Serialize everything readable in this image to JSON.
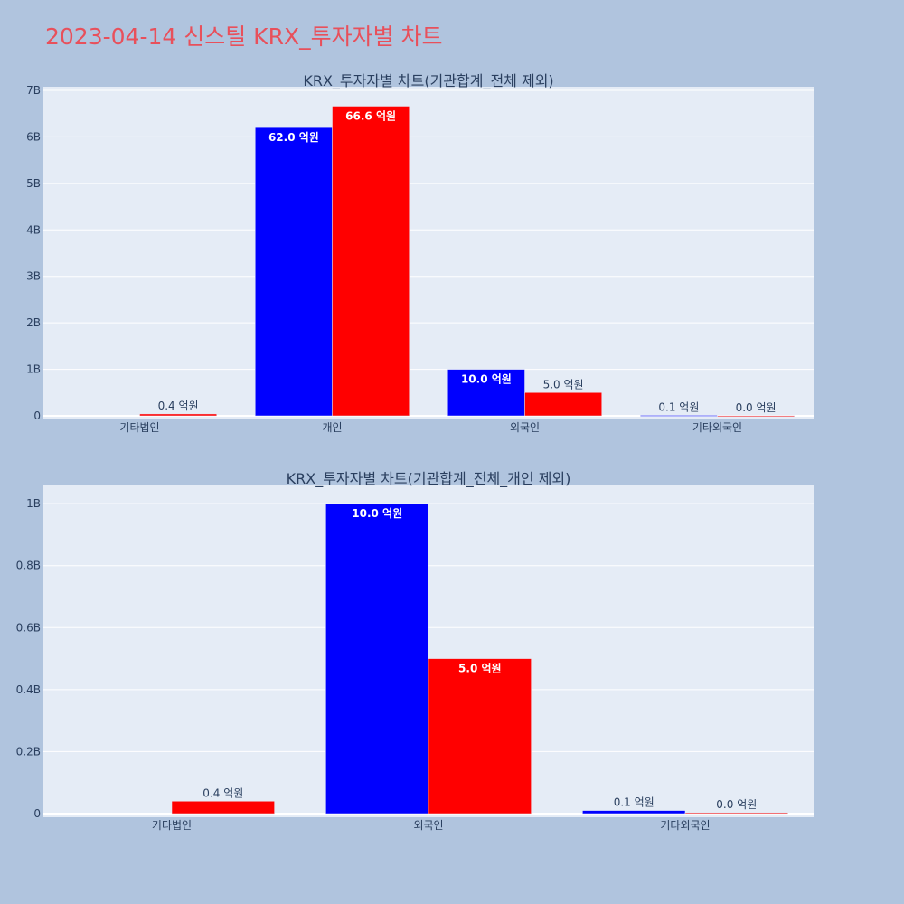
{
  "page_title": "2023-04-14 신스틸 KRX_투자자별 차트",
  "colors": {
    "background": "#b0c4de",
    "plot_background": "#e5ecf6",
    "title": "#e8505b",
    "text": "#2a3f5f",
    "series_a": "#0000ff",
    "series_b": "#ff0000"
  },
  "chart_data": [
    {
      "type": "bar",
      "title": "KRX_투자자별 차트(기관합계_전체 제외)",
      "categories": [
        "기타법인",
        "개인",
        "외국인",
        "기타외국인"
      ],
      "series": [
        {
          "values": [
            0,
            6200000000,
            1000000000,
            10000000
          ],
          "labels": [
            "",
            "62.0 억원",
            "10.0 억원",
            "0.1 억원"
          ],
          "color": "#0000ff"
        },
        {
          "values": [
            40000000,
            6660000000,
            500000000,
            3000000
          ],
          "labels": [
            "0.4 억원",
            "66.6 억원",
            "5.0 억원",
            "0.0 억원"
          ],
          "color": "#ff0000"
        }
      ],
      "ylim": [
        0,
        7000000000
      ],
      "yticks": [
        {
          "value": 0,
          "label": "0"
        },
        {
          "value": 1000000000,
          "label": "1B"
        },
        {
          "value": 2000000000,
          "label": "2B"
        },
        {
          "value": 3000000000,
          "label": "3B"
        },
        {
          "value": 4000000000,
          "label": "4B"
        },
        {
          "value": 5000000000,
          "label": "5B"
        },
        {
          "value": 6000000000,
          "label": "6B"
        },
        {
          "value": 7000000000,
          "label": "7B"
        }
      ],
      "grid": true
    },
    {
      "type": "bar",
      "title": "KRX_투자자별 차트(기관합계_전체_개인 제외)",
      "categories": [
        "기타법인",
        "외국인",
        "기타외국인"
      ],
      "series": [
        {
          "values": [
            0,
            1000000000,
            10000000
          ],
          "labels": [
            "",
            "10.0 억원",
            "0.1 억원"
          ],
          "color": "#0000ff"
        },
        {
          "values": [
            40000000,
            500000000,
            3000000
          ],
          "labels": [
            "0.4 억원",
            "5.0 억원",
            "0.0 억원"
          ],
          "color": "#ff0000"
        }
      ],
      "ylim": [
        0,
        1050000000
      ],
      "yticks": [
        {
          "value": 0,
          "label": "0"
        },
        {
          "value": 200000000,
          "label": "0.2B"
        },
        {
          "value": 400000000,
          "label": "0.4B"
        },
        {
          "value": 600000000,
          "label": "0.6B"
        },
        {
          "value": 800000000,
          "label": "0.8B"
        },
        {
          "value": 1000000000,
          "label": "1B"
        }
      ],
      "grid": true
    }
  ]
}
